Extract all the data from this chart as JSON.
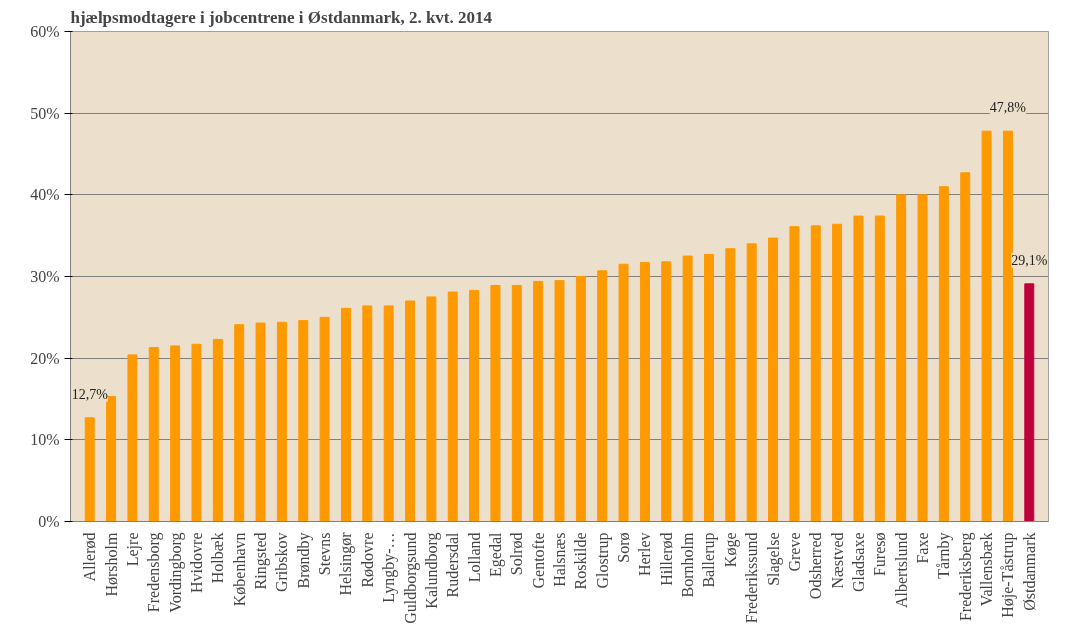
{
  "chart_data": {
    "type": "bar",
    "title": "hjælpsmodtagere i jobcentrene i Østdanmark, 2. kvt. 2014",
    "categories": [
      "Allerød",
      "Hørsholm",
      "Lejre",
      "Fredensborg",
      "Vordingborg",
      "Hvidovre",
      "Holbæk",
      "København",
      "Ringsted",
      "Gribskov",
      "Brøndby",
      "Stevns",
      "Helsingør",
      "Rødovre",
      "Lyngby-…",
      "Guldborgsund",
      "Kalundborg",
      "Rudersdal",
      "Lolland",
      "Egedal",
      "Solrød",
      "Gentofte",
      "Halsnæs",
      "Roskilde",
      "Glostrup",
      "Sorø",
      "Herlev",
      "Hillerød",
      "Bornholm",
      "Ballerup",
      "Køge",
      "Frederikssund",
      "Slagelse",
      "Greve",
      "Odsherred",
      "Næstved",
      "Gladsaxe",
      "Furesø",
      "Albertslund",
      "Faxe",
      "Tårnby",
      "Frederiksberg",
      "Vallensbæk",
      "Høje-Tåstrup",
      "Østdanmark"
    ],
    "values": [
      12.7,
      15.3,
      20.4,
      21.3,
      21.5,
      21.7,
      22.3,
      24.1,
      24.3,
      24.4,
      24.6,
      25.0,
      26.1,
      26.4,
      26.4,
      27.0,
      27.5,
      28.1,
      28.3,
      28.9,
      28.9,
      29.4,
      29.5,
      30.0,
      30.7,
      31.5,
      31.7,
      31.8,
      32.5,
      32.7,
      33.4,
      34.0,
      34.7,
      36.1,
      36.2,
      36.4,
      37.4,
      37.4,
      40.0,
      40.0,
      41.0,
      42.7,
      47.8,
      47.8,
      29.1
    ],
    "colors": [
      "#ff9900",
      "#ff9900",
      "#ff9900",
      "#ff9900",
      "#ff9900",
      "#ff9900",
      "#ff9900",
      "#ff9900",
      "#ff9900",
      "#ff9900",
      "#ff9900",
      "#ff9900",
      "#ff9900",
      "#ff9900",
      "#ff9900",
      "#ff9900",
      "#ff9900",
      "#ff9900",
      "#ff9900",
      "#ff9900",
      "#ff9900",
      "#ff9900",
      "#ff9900",
      "#ff9900",
      "#ff9900",
      "#ff9900",
      "#ff9900",
      "#ff9900",
      "#ff9900",
      "#ff9900",
      "#ff9900",
      "#ff9900",
      "#ff9900",
      "#ff9900",
      "#ff9900",
      "#ff9900",
      "#ff9900",
      "#ff9900",
      "#ff9900",
      "#ff9900",
      "#ff9900",
      "#ff9900",
      "#ff9900",
      "#ff9900",
      "#c0003c"
    ],
    "value_labels": [
      "12,7%",
      null,
      null,
      null,
      null,
      null,
      null,
      null,
      null,
      null,
      null,
      null,
      null,
      null,
      null,
      null,
      null,
      null,
      null,
      null,
      null,
      null,
      null,
      null,
      null,
      null,
      null,
      null,
      null,
      null,
      null,
      null,
      null,
      null,
      null,
      null,
      null,
      null,
      null,
      null,
      null,
      null,
      null,
      "47,8%",
      "29,1%"
    ],
    "ylim": [
      0,
      60
    ],
    "yticks": [
      {
        "value": 0,
        "label": "0%"
      },
      {
        "value": 10,
        "label": "10%"
      },
      {
        "value": 20,
        "label": "20%"
      },
      {
        "value": 30,
        "label": "30%"
      },
      {
        "value": 40,
        "label": "40%"
      },
      {
        "value": 50,
        "label": "50%"
      },
      {
        "value": 60,
        "label": "60%"
      }
    ],
    "grid": "y"
  }
}
